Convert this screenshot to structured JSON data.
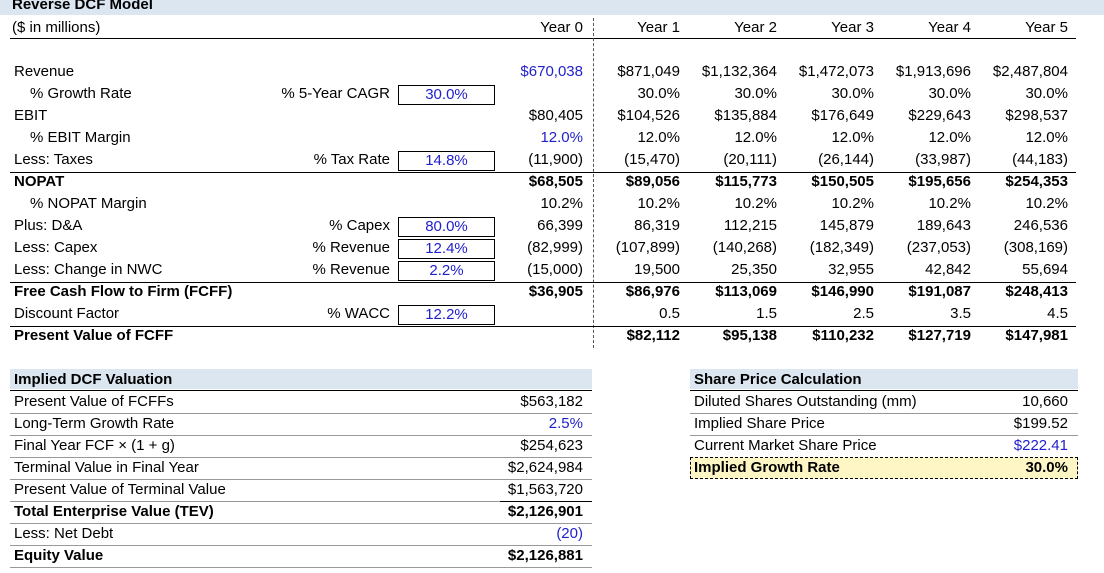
{
  "title": "Reverse DCF Model",
  "units": "($ in millions)",
  "years": [
    "Year 0",
    "Year 1",
    "Year 2",
    "Year 3",
    "Year 4",
    "Year 5"
  ],
  "rows": [
    {
      "label": "Revenue",
      "param_label": "",
      "input": "",
      "values": [
        "$670,038",
        "$871,049",
        "$1,132,364",
        "$1,472,073",
        "$1,913,696",
        "$2,487,804"
      ]
    },
    {
      "label": "% Growth Rate",
      "param_label": "% 5-Year CAGR",
      "input": "30.0%",
      "values": [
        "",
        "30.0%",
        "30.0%",
        "30.0%",
        "30.0%",
        "30.0%"
      ]
    },
    {
      "label": "EBIT",
      "param_label": "",
      "input": "",
      "values": [
        "$80,405",
        "$104,526",
        "$135,884",
        "$176,649",
        "$229,643",
        "$298,537"
      ]
    },
    {
      "label": "% EBIT Margin",
      "param_label": "",
      "input": "",
      "values": [
        "12.0%",
        "12.0%",
        "12.0%",
        "12.0%",
        "12.0%",
        "12.0%"
      ]
    },
    {
      "label": "Less: Taxes",
      "param_label": "% Tax Rate",
      "input": "14.8%",
      "values": [
        "(11,900)",
        "(15,470)",
        "(20,111)",
        "(26,144)",
        "(33,987)",
        "(44,183)"
      ]
    },
    {
      "label": "NOPAT",
      "param_label": "",
      "input": "",
      "values": [
        "$68,505",
        "$89,056",
        "$115,773",
        "$150,505",
        "$195,656",
        "$254,353"
      ]
    },
    {
      "label": "% NOPAT Margin",
      "param_label": "",
      "input": "",
      "values": [
        "10.2%",
        "10.2%",
        "10.2%",
        "10.2%",
        "10.2%",
        "10.2%"
      ]
    },
    {
      "label": "Plus: D&A",
      "param_label": "% Capex",
      "input": "80.0%",
      "values": [
        "66,399",
        "86,319",
        "112,215",
        "145,879",
        "189,643",
        "246,536"
      ]
    },
    {
      "label": "Less: Capex",
      "param_label": "% Revenue",
      "input": "12.4%",
      "values": [
        "(82,999)",
        "(107,899)",
        "(140,268)",
        "(182,349)",
        "(237,053)",
        "(308,169)"
      ]
    },
    {
      "label": "Less: Change in NWC",
      "param_label": "% Revenue",
      "input": "2.2%",
      "values": [
        "(15,000)",
        "19,500",
        "25,350",
        "32,955",
        "42,842",
        "55,694"
      ]
    },
    {
      "label": "Free Cash Flow to Firm (FCFF)",
      "param_label": "",
      "input": "",
      "values": [
        "$36,905",
        "$86,976",
        "$113,069",
        "$146,990",
        "$191,087",
        "$248,413"
      ]
    },
    {
      "label": "Discount Factor",
      "param_label": "% WACC",
      "input": "12.2%",
      "values": [
        "",
        "0.5",
        "1.5",
        "2.5",
        "3.5",
        "4.5"
      ]
    },
    {
      "label": "Present Value of FCFF",
      "param_label": "",
      "input": "",
      "values": [
        "",
        "$82,112",
        "$95,138",
        "$110,232",
        "$127,719",
        "$147,981"
      ]
    }
  ],
  "valuation": {
    "title": "Implied DCF Valuation",
    "rows": [
      {
        "label": "Present Value of FCFFs",
        "value": "$563,182"
      },
      {
        "label": "Long-Term Growth Rate",
        "value": "2.5%"
      },
      {
        "label": "Final Year FCF × (1 + g)",
        "value": "$254,623"
      },
      {
        "label": "Terminal Value in Final Year",
        "value": "$2,624,984"
      },
      {
        "label": "Present Value of Terminal Value",
        "value": "$1,563,720"
      },
      {
        "label": "Total Enterprise Value (TEV)",
        "value": "$2,126,901"
      },
      {
        "label": "Less: Net Debt",
        "value": "(20)"
      },
      {
        "label": "Equity Value",
        "value": "$2,126,881"
      }
    ]
  },
  "share_price": {
    "title": "Share Price Calculation",
    "rows": [
      {
        "label": "Diluted Shares Outstanding (mm)",
        "value": "10,660"
      },
      {
        "label": "Implied Share Price",
        "value": "$199.52"
      },
      {
        "label": "Current Market Share Price",
        "value": "$222.41"
      },
      {
        "label": "Implied Growth Rate",
        "value": "30.0%"
      }
    ]
  }
}
